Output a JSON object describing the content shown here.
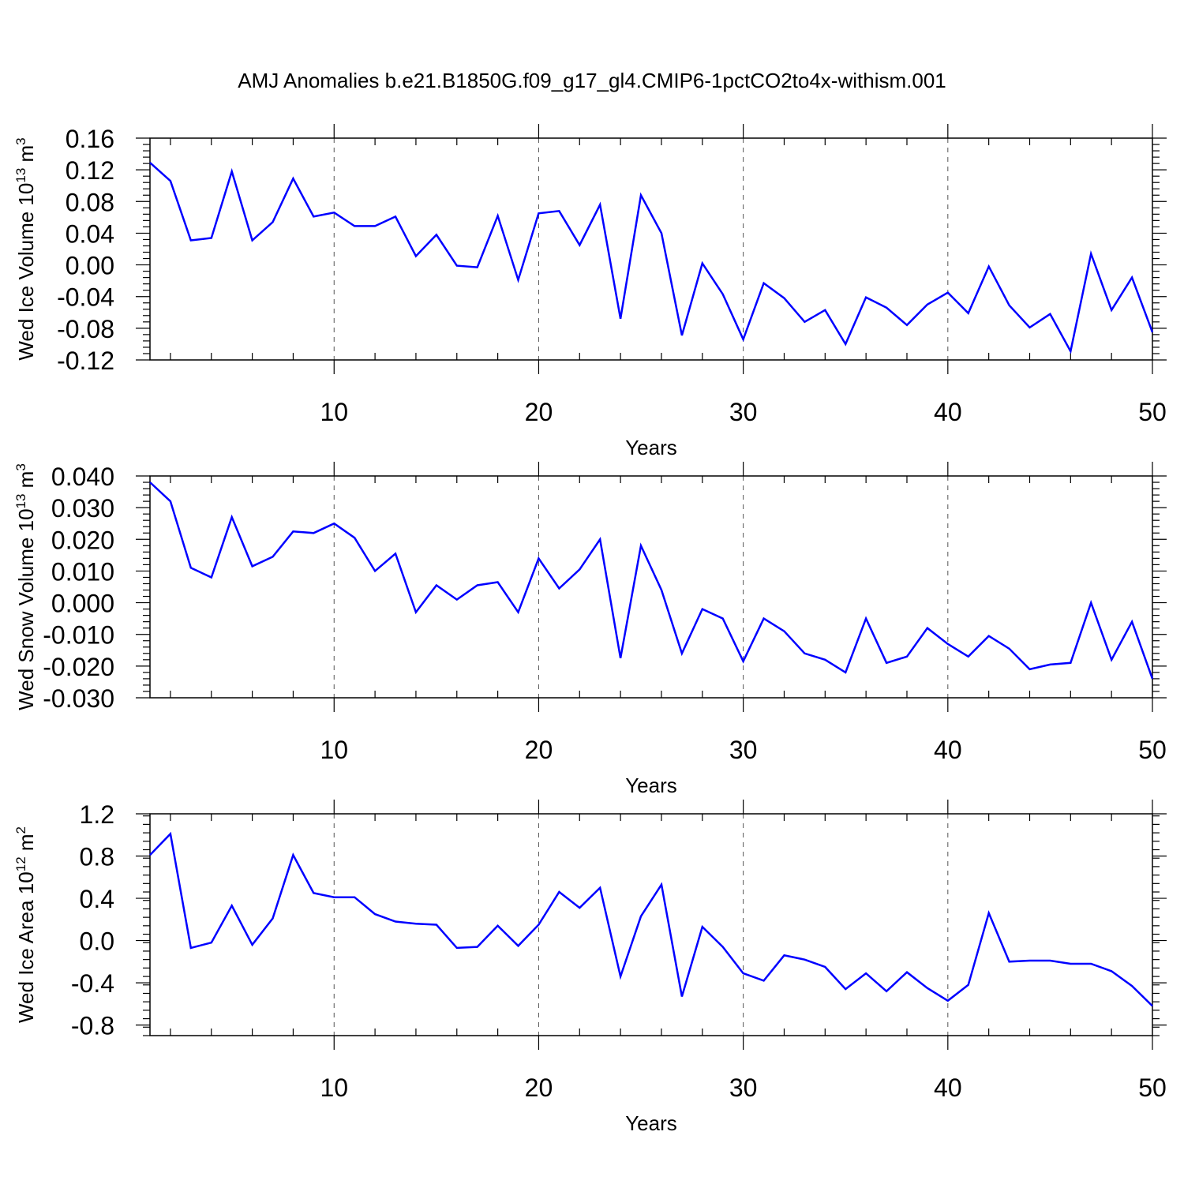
{
  "title": "AMJ Anomalies b.e21.B1850G.f09_g17_gl4.CMIP6-1pctCO2to4x-withism.001",
  "chart_data": [
    {
      "type": "line",
      "ylabel": {
        "text": "Wed Ice Volume 10",
        "sup": "13",
        "unit": "m",
        "unit_sup": "3"
      },
      "xlabel": "Years",
      "xlim": [
        1,
        50
      ],
      "ylim": [
        -0.12,
        0.16
      ],
      "xticks": [
        10,
        20,
        30,
        40,
        50
      ],
      "yticks": [
        "-0.12",
        "-0.08",
        "-0.04",
        "0.00",
        "0.04",
        "0.08",
        "0.12",
        "0.16"
      ],
      "grid_x": "dashed verticals at 10, 20, 30, 40",
      "color": "#0000ff",
      "x": [
        1,
        2,
        3,
        4,
        5,
        6,
        7,
        8,
        9,
        10,
        11,
        12,
        13,
        14,
        15,
        16,
        17,
        18,
        19,
        20,
        21,
        22,
        23,
        24,
        25,
        26,
        27,
        28,
        29,
        30,
        31,
        32,
        33,
        34,
        35,
        36,
        37,
        38,
        39,
        40,
        41,
        42,
        43,
        44,
        45,
        46,
        47,
        48,
        49,
        50
      ],
      "values": [
        0.129,
        0.106,
        0.031,
        0.034,
        0.118,
        0.031,
        0.054,
        0.109,
        0.061,
        0.066,
        0.049,
        0.049,
        0.061,
        0.011,
        0.038,
        -0.001,
        -0.003,
        0.062,
        -0.019,
        0.065,
        0.068,
        0.025,
        0.076,
        -0.068,
        0.088,
        0.04,
        -0.089,
        0.002,
        -0.037,
        -0.094,
        -0.023,
        -0.042,
        -0.072,
        -0.057,
        -0.1,
        -0.041,
        -0.054,
        -0.076,
        -0.05,
        -0.035,
        -0.061,
        -0.002,
        -0.051,
        -0.079,
        -0.062,
        -0.109,
        0.014,
        -0.057,
        -0.016,
        -0.085
      ]
    },
    {
      "type": "line",
      "ylabel": {
        "text": "Wed Snow Volume 10",
        "sup": "13",
        "unit": "m",
        "unit_sup": "3"
      },
      "xlabel": "Years",
      "xlim": [
        1,
        50
      ],
      "ylim": [
        -0.03,
        0.04
      ],
      "xticks": [
        10,
        20,
        30,
        40,
        50
      ],
      "yticks": [
        "-0.030",
        "-0.020",
        "-0.010",
        "0.000",
        "0.010",
        "0.020",
        "0.030",
        "0.040"
      ],
      "grid_x": "dashed verticals at 10, 20, 30, 40",
      "color": "#0000ff",
      "x": [
        1,
        2,
        3,
        4,
        5,
        6,
        7,
        8,
        9,
        10,
        11,
        12,
        13,
        14,
        15,
        16,
        17,
        18,
        19,
        20,
        21,
        22,
        23,
        24,
        25,
        26,
        27,
        28,
        29,
        30,
        31,
        32,
        33,
        34,
        35,
        36,
        37,
        38,
        39,
        40,
        41,
        42,
        43,
        44,
        45,
        46,
        47,
        48,
        49,
        50
      ],
      "values": [
        0.038,
        0.032,
        0.011,
        0.008,
        0.027,
        0.0115,
        0.0145,
        0.0225,
        0.022,
        0.025,
        0.0205,
        0.01,
        0.0155,
        -0.003,
        0.0055,
        0.001,
        0.0055,
        0.0065,
        -0.003,
        0.014,
        0.0045,
        0.0105,
        0.02,
        -0.0175,
        0.018,
        0.004,
        -0.016,
        -0.002,
        -0.005,
        -0.0185,
        -0.005,
        -0.009,
        -0.016,
        -0.018,
        -0.022,
        -0.005,
        -0.019,
        -0.017,
        -0.008,
        -0.013,
        -0.017,
        -0.0105,
        -0.0145,
        -0.021,
        -0.0195,
        -0.019,
        0.0,
        -0.018,
        -0.006,
        -0.024
      ]
    },
    {
      "type": "line",
      "ylabel": {
        "text": "Wed Ice Area 10",
        "sup": "12",
        "unit": "m",
        "unit_sup": "2"
      },
      "xlabel": "Years",
      "xlim": [
        1,
        50
      ],
      "ylim": [
        -0.9,
        1.2
      ],
      "xticks": [
        10,
        20,
        30,
        40,
        50
      ],
      "yticks": [
        "-0.8",
        "-0.4",
        "0.0",
        "0.4",
        "0.8",
        "1.2"
      ],
      "grid_x": "dashed verticals at 10, 20, 30, 40",
      "color": "#0000ff",
      "x": [
        1,
        2,
        3,
        4,
        5,
        6,
        7,
        8,
        9,
        10,
        11,
        12,
        13,
        14,
        15,
        16,
        17,
        18,
        19,
        20,
        21,
        22,
        23,
        24,
        25,
        26,
        27,
        28,
        29,
        30,
        31,
        32,
        33,
        34,
        35,
        36,
        37,
        38,
        39,
        40,
        41,
        42,
        43,
        44,
        45,
        46,
        47,
        48,
        49,
        50
      ],
      "values": [
        0.81,
        1.01,
        -0.07,
        -0.02,
        0.33,
        -0.04,
        0.21,
        0.81,
        0.45,
        0.41,
        0.41,
        0.25,
        0.18,
        0.16,
        0.15,
        -0.07,
        -0.06,
        0.14,
        -0.05,
        0.15,
        0.46,
        0.31,
        0.5,
        -0.34,
        0.23,
        0.53,
        -0.53,
        0.13,
        -0.06,
        -0.31,
        -0.38,
        -0.14,
        -0.18,
        -0.25,
        -0.46,
        -0.31,
        -0.48,
        -0.3,
        -0.45,
        -0.57,
        -0.42,
        0.26,
        -0.2,
        -0.19,
        -0.19,
        -0.22,
        -0.22,
        -0.29,
        -0.43,
        -0.62
      ]
    }
  ]
}
